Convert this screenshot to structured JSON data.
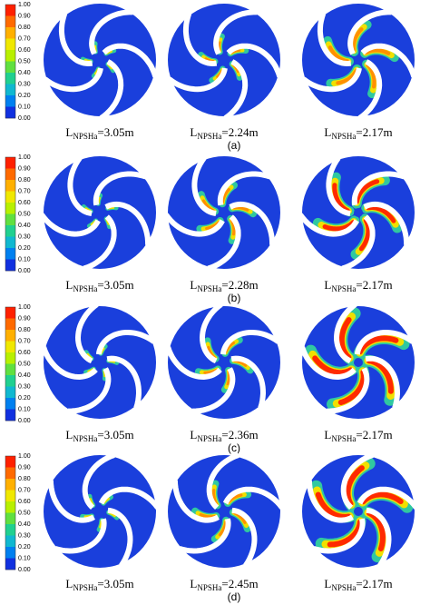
{
  "panels": [
    {
      "caption": "(a)",
      "colorbar_ticks": [
        "1.00",
        "0.90",
        "0.80",
        "0.70",
        "0.60",
        "0.50",
        "0.40",
        "0.30",
        "0.20",
        "0.10",
        "0.00"
      ],
      "images": [
        {
          "label": {
            "main": "L",
            "sub": "NPSHa",
            "rest": "=3.05m"
          }
        },
        {
          "label": {
            "main": "L",
            "sub": "NPSHa",
            "rest": "=2.24m"
          }
        },
        {
          "label": {
            "main": "L",
            "sub": "NPSHa",
            "rest": "=2.17m"
          }
        }
      ]
    },
    {
      "caption": "(b)",
      "colorbar_ticks": [
        "1.00",
        "0.90",
        "0.80",
        "0.70",
        "0.60",
        "0.50",
        "0.40",
        "0.30",
        "0.20",
        "0.10",
        "0.00"
      ],
      "images": [
        {
          "label": {
            "main": "L",
            "sub": "NPSHa",
            "rest": "=3.05m"
          }
        },
        {
          "label": {
            "main": "L",
            "sub": "NPSHa",
            "rest": "=2.28m"
          }
        },
        {
          "label": {
            "main": "L",
            "sub": "NPSHa",
            "rest": "=2.17m"
          }
        }
      ]
    },
    {
      "caption": "(c)",
      "colorbar_ticks": [
        "1.00",
        "0.90",
        "0.80",
        "0.70",
        "0.60",
        "0.50",
        "0.40",
        "0.30",
        "0.20",
        "0.10",
        "0.00"
      ],
      "images": [
        {
          "label": {
            "main": "L",
            "sub": "NPSHa",
            "rest": "=3.05m"
          }
        },
        {
          "label": {
            "main": "L",
            "sub": "NPSHa",
            "rest": "=2.36m"
          }
        },
        {
          "label": {
            "main": "L",
            "sub": "NPSHa",
            "rest": "=2.17m"
          }
        }
      ]
    },
    {
      "caption": "(d)",
      "colorbar_ticks": [
        "1.00",
        "0.90",
        "0.80",
        "0.70",
        "0.60",
        "0.50",
        "0.40",
        "0.30",
        "0.20",
        "0.10",
        "0.00"
      ],
      "images": [
        {
          "label": {
            "main": "L",
            "sub": "NPSHa",
            "rest": "=3.05m"
          }
        },
        {
          "label": {
            "main": "L",
            "sub": "NPSHa",
            "rest": "=2.45m"
          }
        },
        {
          "label": {
            "main": "L",
            "sub": "NPSHa",
            "rest": "=2.17m"
          }
        }
      ]
    }
  ]
}
